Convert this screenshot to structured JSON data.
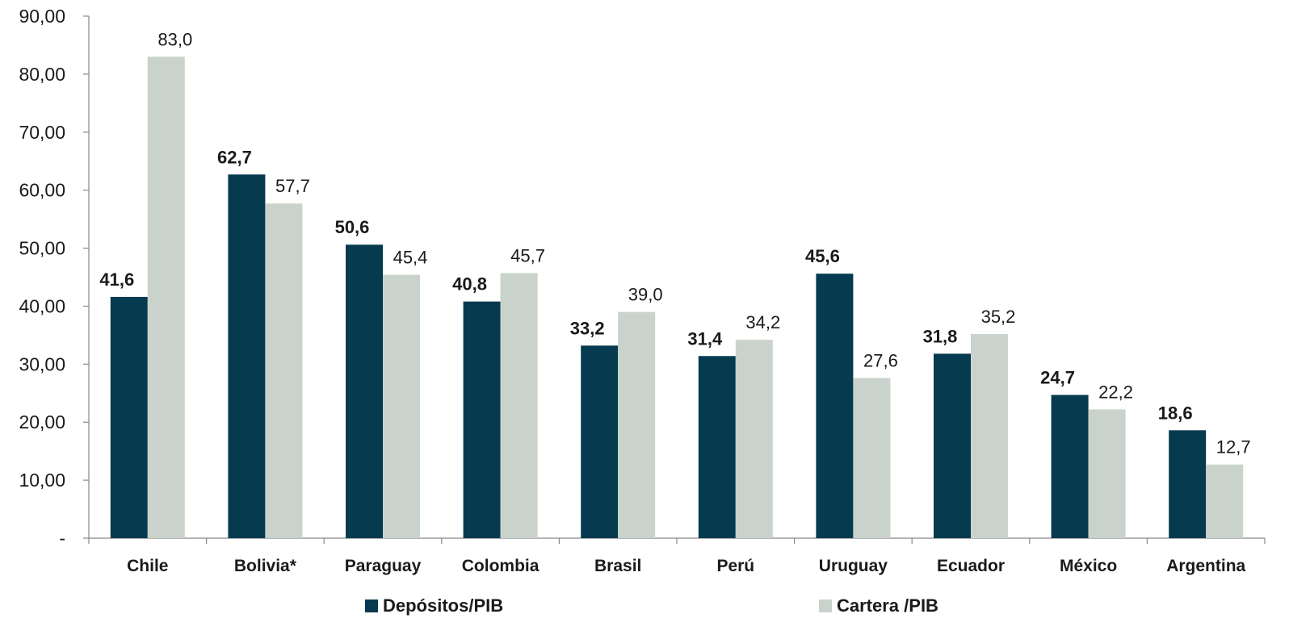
{
  "chart_data": {
    "type": "bar",
    "title": "",
    "xlabel": "",
    "ylabel": "",
    "ylim": [
      0,
      90
    ],
    "yticks": [
      0,
      10,
      20,
      30,
      40,
      50,
      60,
      70,
      80,
      90
    ],
    "ytick_labels": [
      "-",
      "10,00",
      "20,00",
      "30,00",
      "40,00",
      "50,00",
      "60,00",
      "70,00",
      "80,00",
      "90,00"
    ],
    "categories": [
      "Chile",
      "Bolivia*",
      "Paraguay",
      "Colombia",
      "Brasil",
      "Perú",
      "Uruguay",
      "Ecuador",
      "México",
      "Argentina"
    ],
    "series": [
      {
        "name": "Depósitos/PIB",
        "color": "#063a4f",
        "values": [
          41.6,
          62.7,
          50.6,
          40.8,
          33.2,
          31.4,
          45.6,
          31.8,
          24.7,
          18.6
        ],
        "labels": [
          "41,6",
          "62,7",
          "50,6",
          "40,8",
          "33,2",
          "31,4",
          "45,6",
          "31,8",
          "24,7",
          "18,6"
        ],
        "label_weight": "bold"
      },
      {
        "name": "Cartera /PIB",
        "color": "#c9d3cc",
        "values": [
          83.0,
          57.7,
          45.4,
          45.7,
          39.0,
          34.2,
          27.6,
          35.2,
          22.2,
          12.7
        ],
        "labels": [
          "83,0",
          "57,7",
          "45,4",
          "45,7",
          "39,0",
          "34,2",
          "27,6",
          "35,2",
          "22,2",
          "12,7"
        ],
        "label_weight": "normal"
      }
    ],
    "grid": false,
    "legend_position": "bottom"
  }
}
